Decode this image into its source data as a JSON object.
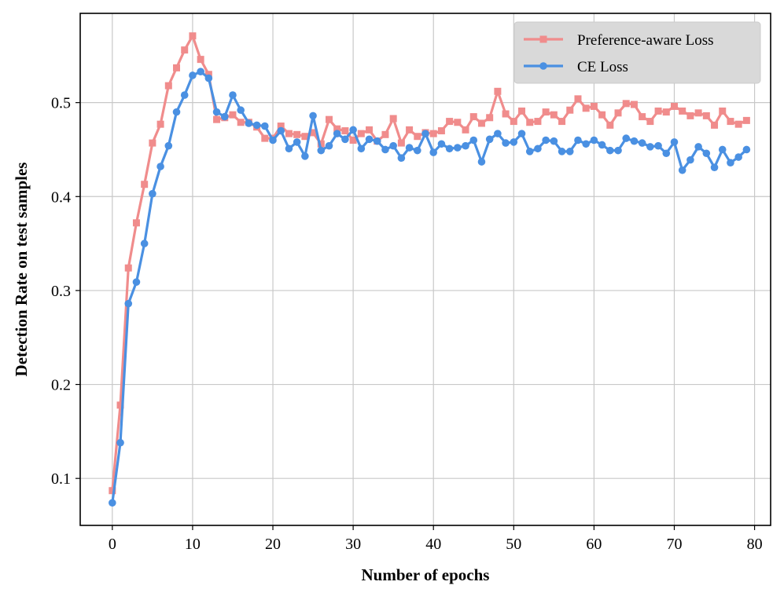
{
  "chart_data": {
    "type": "line",
    "xlabel": "Number of epochs",
    "ylabel": "Detection Rate on test samples",
    "xlim": [
      -4,
      82
    ],
    "ylim": [
      0.05,
      0.595
    ],
    "xticks": [
      0,
      10,
      20,
      30,
      40,
      50,
      60,
      70,
      80
    ],
    "xtick_labels": [
      "0",
      "10",
      "20",
      "30",
      "40",
      "50",
      "60",
      "70",
      "80"
    ],
    "yticks": [
      0.1,
      0.2,
      0.3,
      0.4,
      0.5
    ],
    "ytick_labels": [
      "0.1",
      "0.2",
      "0.3",
      "0.4",
      "0.5"
    ],
    "grid": true,
    "legend_position": "top-right",
    "x": [
      0,
      1,
      2,
      3,
      4,
      5,
      6,
      7,
      8,
      9,
      10,
      11,
      12,
      13,
      14,
      15,
      16,
      17,
      18,
      19,
      20,
      21,
      22,
      23,
      24,
      25,
      26,
      27,
      28,
      29,
      30,
      31,
      32,
      33,
      34,
      35,
      36,
      37,
      38,
      39,
      40,
      41,
      42,
      43,
      44,
      45,
      46,
      47,
      48,
      49,
      50,
      51,
      52,
      53,
      54,
      55,
      56,
      57,
      58,
      59,
      60,
      61,
      62,
      63,
      64,
      65,
      66,
      67,
      68,
      69,
      70,
      71,
      72,
      73,
      74,
      75,
      76,
      77,
      78,
      79
    ],
    "series": [
      {
        "name": "Preference-aware Loss",
        "color": "#F08C8C",
        "marker": "square",
        "values": [
          0.087,
          0.178,
          0.324,
          0.372,
          0.413,
          0.457,
          0.477,
          0.518,
          0.537,
          0.556,
          0.571,
          0.546,
          0.53,
          0.482,
          0.484,
          0.487,
          0.479,
          0.479,
          0.474,
          0.462,
          0.462,
          0.475,
          0.467,
          0.466,
          0.464,
          0.468,
          0.456,
          0.482,
          0.472,
          0.47,
          0.46,
          0.467,
          0.471,
          0.459,
          0.466,
          0.483,
          0.457,
          0.471,
          0.464,
          0.468,
          0.467,
          0.47,
          0.48,
          0.479,
          0.471,
          0.485,
          0.478,
          0.484,
          0.512,
          0.488,
          0.48,
          0.491,
          0.479,
          0.48,
          0.49,
          0.487,
          0.48,
          0.492,
          0.504,
          0.494,
          0.496,
          0.487,
          0.476,
          0.489,
          0.499,
          0.498,
          0.485,
          0.48,
          0.491,
          0.49,
          0.496,
          0.491,
          0.486,
          0.489,
          0.486,
          0.476,
          0.491,
          0.48,
          0.477,
          0.481
        ]
      },
      {
        "name": "CE Loss",
        "color": "#4A90E2",
        "marker": "circle",
        "values": [
          0.074,
          0.138,
          0.286,
          0.309,
          0.35,
          0.403,
          0.432,
          0.454,
          0.49,
          0.508,
          0.529,
          0.533,
          0.526,
          0.49,
          0.485,
          0.508,
          0.492,
          0.478,
          0.476,
          0.475,
          0.46,
          0.47,
          0.451,
          0.458,
          0.443,
          0.486,
          0.449,
          0.454,
          0.467,
          0.461,
          0.471,
          0.451,
          0.461,
          0.459,
          0.45,
          0.454,
          0.441,
          0.452,
          0.449,
          0.467,
          0.447,
          0.456,
          0.451,
          0.452,
          0.454,
          0.46,
          0.437,
          0.461,
          0.467,
          0.457,
          0.458,
          0.467,
          0.448,
          0.451,
          0.46,
          0.459,
          0.448,
          0.448,
          0.46,
          0.456,
          0.46,
          0.455,
          0.449,
          0.449,
          0.462,
          0.459,
          0.457,
          0.453,
          0.454,
          0.446,
          0.458,
          0.428,
          0.439,
          0.453,
          0.446,
          0.431,
          0.45,
          0.436,
          0.442,
          0.45
        ]
      }
    ]
  }
}
